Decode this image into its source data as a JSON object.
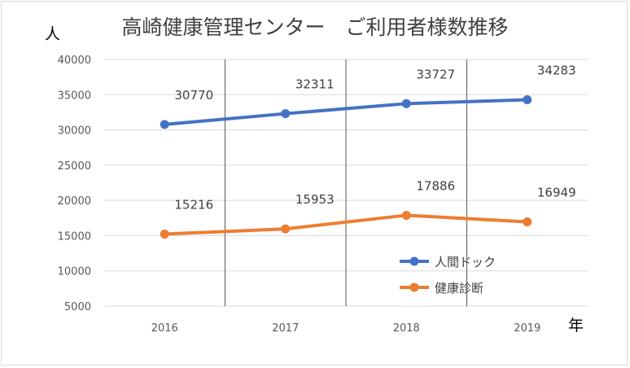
{
  "chart_data": {
    "type": "line",
    "title": "高崎健康管理センター　ご利用者様数推移",
    "ylabel": "人",
    "xlabel": "年",
    "categories": [
      "2016",
      "2017",
      "2018",
      "2019"
    ],
    "ylim": [
      5000,
      40000
    ],
    "yticks": [
      5000,
      10000,
      15000,
      20000,
      25000,
      30000,
      35000,
      40000
    ],
    "grid": true,
    "legend_position": "lower-right",
    "series": [
      {
        "name": "人間ドック",
        "values": [
          30770,
          32311,
          33727,
          34283
        ],
        "color": "#4472c4"
      },
      {
        "name": "健康診断",
        "values": [
          15216,
          15953,
          17886,
          16949
        ],
        "color": "#ed7d31"
      }
    ]
  }
}
